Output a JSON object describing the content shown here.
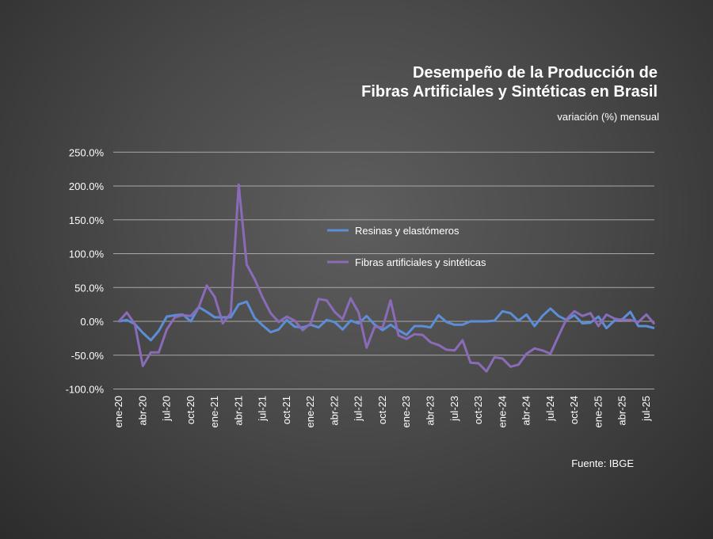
{
  "chart_data": {
    "type": "line",
    "title": "Desempeño de la Producción de Fibras Artificiales y Sintéticas en Brasil",
    "title_lines": [
      "Desempeño de la Producción de",
      "Fibras Artificiales y Sintéticas en Brasil"
    ],
    "subtitle": "variación (%) mensual",
    "source": "Fuente: IBGE",
    "xlabel": "",
    "ylabel": "",
    "ylim": [
      -100,
      250
    ],
    "yticks": [
      -100,
      -50,
      0,
      50,
      100,
      150,
      200,
      250
    ],
    "ytick_labels": [
      "-100.0%",
      "-50.0%",
      "0.0%",
      "50.0%",
      "100.0%",
      "150.0%",
      "200.0%",
      "250.0%"
    ],
    "grid": true,
    "legend_position": "center",
    "categories": [
      "ene-20",
      "feb-20",
      "mar-20",
      "abr-20",
      "may-20",
      "jun-20",
      "jul-20",
      "ago-20",
      "sep-20",
      "oct-20",
      "nov-20",
      "dic-20",
      "ene-21",
      "feb-21",
      "mar-21",
      "abr-21",
      "may-21",
      "jun-21",
      "jul-21",
      "ago-21",
      "sep-21",
      "oct-21",
      "nov-21",
      "dic-21",
      "ene-22",
      "feb-22",
      "mar-22",
      "abr-22",
      "may-22",
      "jun-22",
      "jul-22",
      "ago-22",
      "sep-22",
      "oct-22",
      "nov-22",
      "dic-22",
      "ene-23",
      "feb-23",
      "mar-23",
      "abr-23",
      "may-23",
      "jun-23",
      "jul-23",
      "ago-23",
      "sep-23",
      "oct-23",
      "nov-23",
      "dic-23",
      "ene-24",
      "feb-24",
      "mar-24",
      "abr-24",
      "may-24",
      "jun-24",
      "jul-24",
      "ago-24",
      "sep-24",
      "oct-24",
      "nov-24",
      "dic-24",
      "ene-25",
      "feb-25",
      "mar-25",
      "abr-25",
      "may-25",
      "jun-25",
      "jul-25",
      "ago-25"
    ],
    "tick_every": 3,
    "series": [
      {
        "name": "Resinas y elastómeros",
        "color": "#5b8ed6",
        "values": [
          0,
          2,
          -4,
          -17,
          -28,
          -14,
          7,
          9,
          10,
          0,
          21,
          14,
          6,
          6,
          6,
          25,
          29,
          5,
          -6,
          -16,
          -12,
          2,
          -8,
          -9,
          -5,
          -9,
          2,
          -1,
          -12,
          1,
          -3,
          8,
          -5,
          -13,
          -5,
          -13,
          -20,
          -7,
          -7,
          -9,
          9,
          -1,
          -5,
          -5,
          0,
          0,
          0,
          1,
          15,
          12,
          1,
          10,
          -7,
          8,
          19,
          8,
          2,
          9,
          -3,
          -2,
          7,
          -10,
          1,
          3,
          14,
          -7,
          -7,
          -10
        ]
      },
      {
        "name": "Fibras artificiales y sintéticas",
        "color": "#8a6bb8",
        "values": [
          0,
          13,
          -4,
          -66,
          -46,
          -46,
          -12,
          6,
          9,
          8,
          21,
          53,
          36,
          -3,
          12,
          202,
          84,
          62,
          35,
          12,
          -1,
          7,
          1,
          -13,
          -3,
          33,
          31,
          14,
          3,
          34,
          13,
          -39,
          -8,
          -9,
          31,
          -21,
          -26,
          -19,
          -20,
          -31,
          -35,
          -42,
          -43,
          -28,
          -61,
          -62,
          -74,
          -53,
          -55,
          -67,
          -64,
          -48,
          -40,
          -43,
          -48,
          -22,
          3,
          15,
          8,
          12,
          -7,
          10,
          4,
          2,
          2,
          -1,
          10,
          -4
        ]
      }
    ]
  }
}
